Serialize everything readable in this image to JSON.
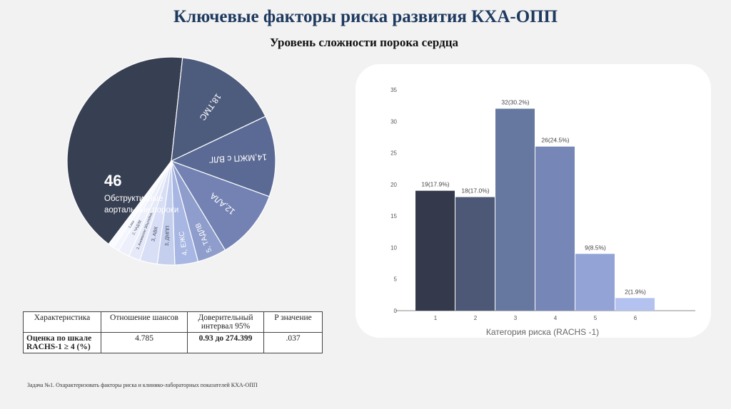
{
  "header": {
    "title": "Ключевые факторы риска развития КХА-ОПП",
    "subtitle": "Уровень сложности порока сердца"
  },
  "chart_data": [
    {
      "type": "pie",
      "slices": [
        {
          "value": 46,
          "label": "Обструктивные аортальные пороки",
          "color": "#373f52"
        },
        {
          "value": 18,
          "label": "18,ТМС",
          "color": "#4d5b7d"
        },
        {
          "value": 14,
          "label": "14,МЖП с ВЛГ",
          "color": "#5b6a94"
        },
        {
          "value": 12,
          "label": "12,АЛА",
          "color": "#7382b2"
        },
        {
          "value": 5,
          "label": "5, ТАДЛВ",
          "color": "#8e9dcb"
        },
        {
          "value": 4,
          "label": "4, ЕЖС",
          "color": "#a7b6e2"
        },
        {
          "value": 3,
          "label": "3, ДМПП",
          "color": "#c4cfee"
        },
        {
          "value": 3,
          "label": "3, АВК",
          "color": "#d8def5"
        },
        {
          "value": 2,
          "label": "2, Аномалии Эбштейна",
          "color": "#e5e9f8"
        },
        {
          "value": 2,
          "label": "2, ЧАДЛВ",
          "color": "#edf0fb"
        },
        {
          "value": 1,
          "label": "1,ххх",
          "color": "#f4f6fd"
        },
        {
          "value": 1,
          "label": "",
          "color": "#fafbff"
        }
      ],
      "center_value": "46",
      "center_label_1": "Обструктивные",
      "center_label_2": "аортальные пороки"
    },
    {
      "type": "bar",
      "categories": [
        "1",
        "2",
        "3",
        "4",
        "5",
        "6"
      ],
      "values": [
        19,
        18,
        32,
        26,
        9,
        2
      ],
      "data_labels": [
        "19(17.9%)",
        "18(17.0%)",
        "32(30.2%)",
        "26(24.5%)",
        "9(8.5%)",
        "2(1.9%)"
      ],
      "colors": [
        "#343a4c",
        "#4c5876",
        "#66789f",
        "#7586b7",
        "#93a3d6",
        "#b4c2ef"
      ],
      "xlabel": "Категория риска (RACHS -1)",
      "ylabel": "",
      "ylim": [
        0,
        35
      ],
      "yticks": [
        0,
        5,
        10,
        15,
        20,
        25,
        30,
        35
      ],
      "grid": false
    }
  ],
  "table": {
    "headers": [
      "Характеристика",
      "Отношение шансов",
      "Доверительный интервал 95%",
      "P значение"
    ],
    "row": [
      "Оценка по шкале RACHS-1 ≥ 4 (%)",
      "4.785",
      "0.93 до 274.399",
      ".037"
    ]
  },
  "footnote": "Задача №1. Охарактеризовать факторы риска и клинико-лабораторных показателей КХА-ОПП"
}
